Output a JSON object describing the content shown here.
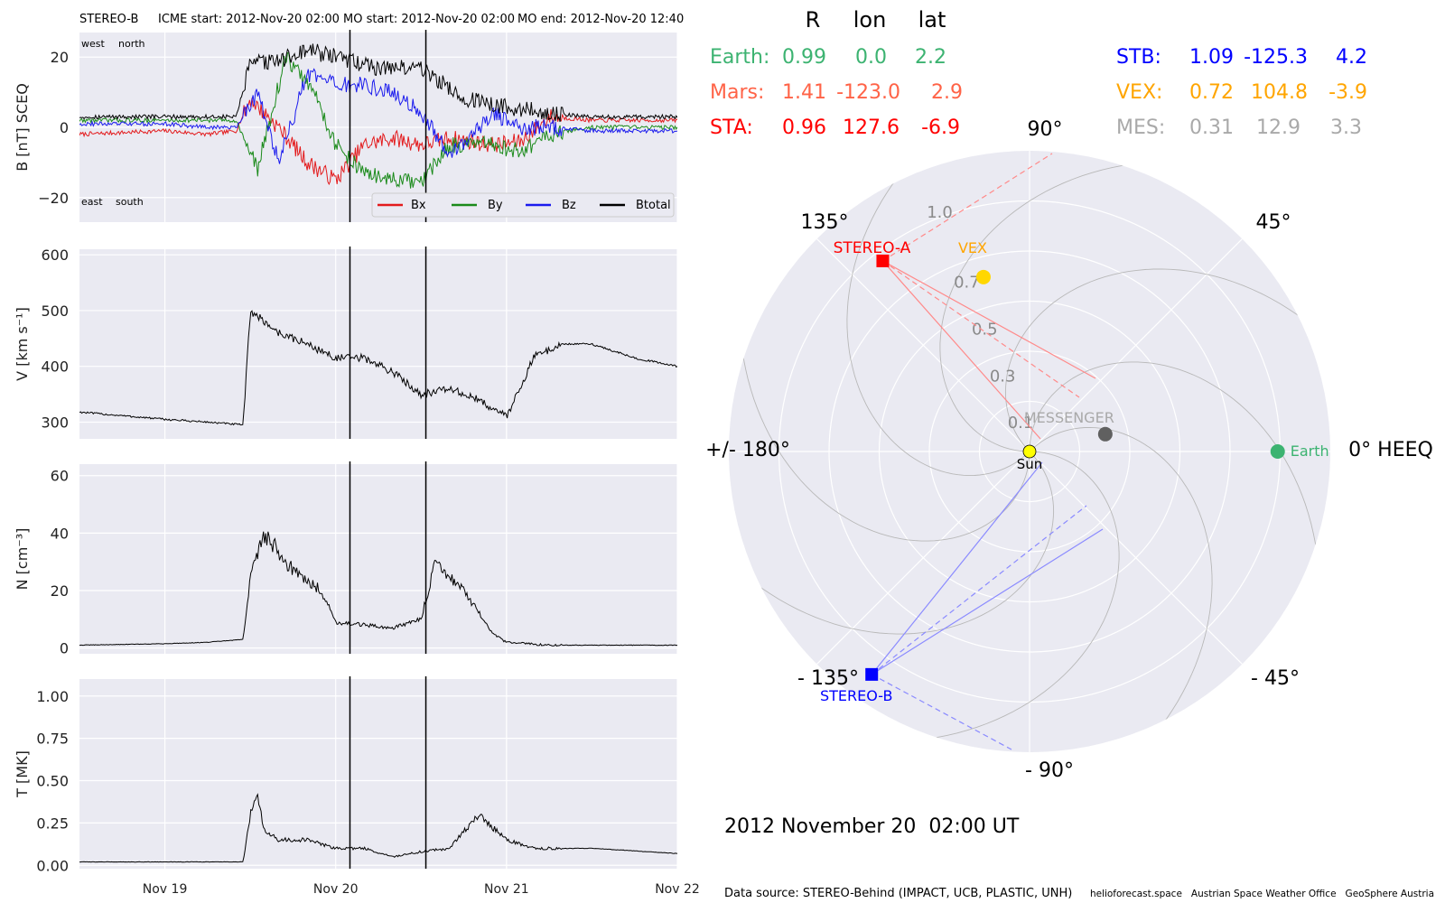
{
  "header": {
    "spacecraft": "STEREO-B",
    "icme": "ICME start: 2012-Nov-20 02:00",
    "mo_start": "MO start: 2012-Nov-20 02:00",
    "mo_end": "MO end: 2012-Nov-20 12:40"
  },
  "panel_labels": {
    "west": "west",
    "north": "north",
    "east": "east",
    "south": "south"
  },
  "colors": {
    "axes_bg": "#eaeaf2",
    "bx": "#e31a1c",
    "by": "#1a8a1a",
    "bz": "#1a1aee",
    "bt": "#000000",
    "earth": "#3cb371",
    "mars": "#ff6347",
    "sta": "#ff0000",
    "stb": "#0000ff",
    "vex": "#ffa500",
    "mes": "#a9a9a9",
    "vex_marker": "#ffd700",
    "sun": "#ffff00",
    "mes_marker": "#606060"
  },
  "chart_data": [
    {
      "type": "line",
      "ylabel": "B [nT] SCEQ",
      "xlim": [
        "2012-11-18 12:00",
        "2012-11-22 00:00"
      ],
      "ylim": [
        -27,
        27
      ],
      "yticks": [
        20,
        0,
        -20
      ],
      "ytick_labels": [
        "20",
        "0",
        "−20"
      ],
      "legend": {
        "placement": "lower-right",
        "entries": [
          "Bx",
          "By",
          "Bz",
          "Btotal"
        ]
      },
      "event_markers": [
        "2012-11-20 02:00",
        "2012-11-20 12:40"
      ],
      "series": [
        {
          "name": "Bx",
          "x": [
            "2012-11-18 12:00",
            "2012-11-19 00:00",
            "2012-11-19 06:00",
            "2012-11-19 10:00",
            "2012-11-19 12:00",
            "2012-11-19 16:00",
            "2012-11-19 20:00",
            "2012-11-20 00:00",
            "2012-11-20 04:00",
            "2012-11-20 08:00",
            "2012-11-20 12:00",
            "2012-11-20 16:00",
            "2012-11-20 22:00",
            "2012-11-21 02:00",
            "2012-11-21 06:00",
            "2012-11-21 12:00",
            "2012-11-21 18:00",
            "2012-11-22 00:00"
          ],
          "y": [
            -2,
            -1,
            -2,
            -1,
            8,
            0,
            -10,
            -15,
            -5,
            -3,
            -5,
            -3,
            -5,
            -4,
            3,
            2,
            2,
            2
          ]
        },
        {
          "name": "By",
          "x": [
            "2012-11-18 12:00",
            "2012-11-19 00:00",
            "2012-11-19 06:00",
            "2012-11-19 10:00",
            "2012-11-19 13:00",
            "2012-11-19 17:00",
            "2012-11-19 21:00",
            "2012-11-20 00:00",
            "2012-11-20 04:00",
            "2012-11-20 08:00",
            "2012-11-20 12:00",
            "2012-11-20 16:00",
            "2012-11-20 22:00",
            "2012-11-21 02:00",
            "2012-11-21 06:00",
            "2012-11-21 12:00",
            "2012-11-21 18:00",
            "2012-11-22 00:00"
          ],
          "y": [
            2,
            2,
            2,
            2,
            -12,
            20,
            10,
            -5,
            -13,
            -15,
            -16,
            -5,
            -5,
            -7,
            -2,
            0,
            0,
            0
          ]
        },
        {
          "name": "Bz",
          "x": [
            "2012-11-18 12:00",
            "2012-11-19 00:00",
            "2012-11-19 06:00",
            "2012-11-19 10:00",
            "2012-11-19 13:00",
            "2012-11-19 16:00",
            "2012-11-19 20:00",
            "2012-11-20 00:00",
            "2012-11-20 04:00",
            "2012-11-20 08:00",
            "2012-11-20 12:00",
            "2012-11-20 16:00",
            "2012-11-20 22:00",
            "2012-11-21 02:00",
            "2012-11-21 06:00",
            "2012-11-21 12:00",
            "2012-11-21 18:00",
            "2012-11-22 00:00"
          ],
          "y": [
            1,
            1,
            0,
            0,
            10,
            -10,
            15,
            12,
            12,
            10,
            4,
            -8,
            4,
            0,
            0,
            -1,
            -1,
            -1
          ]
        },
        {
          "name": "Btotal",
          "x": [
            "2012-11-18 12:00",
            "2012-11-19 00:00",
            "2012-11-19 06:00",
            "2012-11-19 10:00",
            "2012-11-19 12:00",
            "2012-11-19 16:00",
            "2012-11-19 20:00",
            "2012-11-20 00:00",
            "2012-11-20 06:00",
            "2012-11-20 12:00",
            "2012-11-20 18:00",
            "2012-11-21 00:00",
            "2012-11-21 06:00",
            "2012-11-21 12:00",
            "2012-11-21 18:00",
            "2012-11-22 00:00"
          ],
          "y": [
            3,
            3,
            3,
            3,
            18,
            19,
            22,
            20,
            17,
            17,
            8,
            6,
            4,
            3,
            3,
            3
          ]
        }
      ]
    },
    {
      "type": "line",
      "ylabel": "V [km s⁻¹]",
      "xlim": [
        "2012-11-18 12:00",
        "2012-11-22 00:00"
      ],
      "ylim": [
        270,
        610
      ],
      "yticks": [
        600,
        500,
        400,
        300
      ],
      "event_markers": [
        "2012-11-20 02:00",
        "2012-11-20 12:40"
      ],
      "series": [
        {
          "name": "V",
          "x": [
            "2012-11-18 12:00",
            "2012-11-19 00:00",
            "2012-11-19 06:00",
            "2012-11-19 11:00",
            "2012-11-19 12:00",
            "2012-11-19 16:00",
            "2012-11-19 20:00",
            "2012-11-20 00:00",
            "2012-11-20 04:00",
            "2012-11-20 08:00",
            "2012-11-20 12:00",
            "2012-11-20 16:00",
            "2012-11-20 20:00",
            "2012-11-21 00:00",
            "2012-11-21 04:00",
            "2012-11-21 08:00",
            "2012-11-21 12:00",
            "2012-11-21 18:00",
            "2012-11-22 00:00"
          ],
          "y": [
            318,
            305,
            300,
            295,
            500,
            460,
            440,
            415,
            415,
            390,
            350,
            360,
            340,
            310,
            420,
            440,
            440,
            415,
            400
          ]
        }
      ]
    },
    {
      "type": "line",
      "ylabel": "N [cm⁻³]",
      "xlim": [
        "2012-11-18 12:00",
        "2012-11-22 00:00"
      ],
      "ylim": [
        -2,
        64
      ],
      "yticks": [
        60,
        40,
        20,
        0
      ],
      "event_markers": [
        "2012-11-20 02:00",
        "2012-11-20 12:40"
      ],
      "series": [
        {
          "name": "N",
          "x": [
            "2012-11-18 12:00",
            "2012-11-19 00:00",
            "2012-11-19 06:00",
            "2012-11-19 11:00",
            "2012-11-19 12:00",
            "2012-11-19 14:00",
            "2012-11-19 17:00",
            "2012-11-19 19:00",
            "2012-11-19 22:00",
            "2012-11-20 00:00",
            "2012-11-20 04:00",
            "2012-11-20 08:00",
            "2012-11-20 12:00",
            "2012-11-20 14:00",
            "2012-11-20 18:00",
            "2012-11-20 22:00",
            "2012-11-21 00:00",
            "2012-11-21 06:00",
            "2012-11-22 00:00"
          ],
          "y": [
            1,
            1.5,
            2,
            3,
            25,
            40,
            30,
            25,
            20,
            9,
            8,
            7,
            10,
            30,
            20,
            5,
            2,
            1,
            1
          ]
        }
      ]
    },
    {
      "type": "line",
      "ylabel": "T [MK]",
      "xlim": [
        "2012-11-18 12:00",
        "2012-11-22 00:00"
      ],
      "ylim": [
        -0.02,
        1.1
      ],
      "yticks": [
        1.0,
        0.75,
        0.5,
        0.25,
        0.0
      ],
      "ytick_labels": [
        "1.00",
        "0.75",
        "0.50",
        "0.25",
        "0.00"
      ],
      "xticks": [
        "Nov 19",
        "Nov 20",
        "Nov 21",
        "Nov 22"
      ],
      "event_markers": [
        "2012-11-20 02:00",
        "2012-11-20 12:40"
      ],
      "series": [
        {
          "name": "T",
          "x": [
            "2012-11-18 12:00",
            "2012-11-19 00:00",
            "2012-11-19 11:00",
            "2012-11-19 12:00",
            "2012-11-19 13:00",
            "2012-11-19 14:00",
            "2012-11-19 16:00",
            "2012-11-19 20:00",
            "2012-11-20 00:00",
            "2012-11-20 04:00",
            "2012-11-20 08:00",
            "2012-11-20 12:00",
            "2012-11-20 16:00",
            "2012-11-20 20:00",
            "2012-11-21 00:00",
            "2012-11-21 04:00",
            "2012-11-21 12:00",
            "2012-11-22 00:00"
          ],
          "y": [
            0.02,
            0.02,
            0.02,
            0.3,
            0.4,
            0.2,
            0.15,
            0.15,
            0.1,
            0.1,
            0.05,
            0.08,
            0.1,
            0.3,
            0.15,
            0.1,
            0.1,
            0.07
          ]
        }
      ]
    },
    {
      "type": "scatter",
      "subtype": "polar",
      "angle_unit": "deg",
      "r_ticks": [
        0.1,
        0.3,
        0.5,
        0.7,
        1.0
      ],
      "r_tick_labels": [
        "0.1",
        "0.3",
        "0.5",
        "0.7",
        "1.0"
      ],
      "rlim": [
        0,
        1.2
      ],
      "angle_labels": {
        "0": "0° HEEQ",
        "45": "45°",
        "90": "90°",
        "135": "135°",
        "180": "+/- 180°",
        "-135": "- 135°",
        "-90": "- 90°",
        "-45": "- 45°"
      },
      "points": [
        {
          "label": "Sun",
          "r": 0.0,
          "lon": 0.0
        },
        {
          "label": "Earth",
          "r": 0.99,
          "lon": 0.0
        },
        {
          "label": "MESSENGER",
          "r": 0.31,
          "lon": 12.9
        },
        {
          "label": "VEX",
          "r": 0.72,
          "lon": 104.8
        },
        {
          "label": "STEREO-A",
          "r": 0.96,
          "lon": 127.6
        },
        {
          "label": "STEREO-B",
          "r": 1.09,
          "lon": -125.3
        }
      ]
    }
  ],
  "table": {
    "columns": [
      "R",
      "lon",
      "lat"
    ],
    "left_rows": [
      {
        "name": "Earth:",
        "r": "0.99",
        "lon": "0.0",
        "lat": "2.2"
      },
      {
        "name": "Mars:",
        "r": "1.41",
        "lon": "-123.0",
        "lat": "2.9"
      },
      {
        "name": "STA:",
        "r": "0.96",
        "lon": "127.6",
        "lat": "-6.9"
      }
    ],
    "right_rows": [
      {
        "name": "STB:",
        "r": "1.09",
        "lon": "-125.3",
        "lat": "4.2"
      },
      {
        "name": "VEX:",
        "r": "0.72",
        "lon": "104.8",
        "lat": "-3.9"
      },
      {
        "name": "MES:",
        "r": "0.31",
        "lon": "12.9",
        "lat": "3.3"
      }
    ]
  },
  "timestamp": "2012 November 20  02:00 UT",
  "footer": {
    "source": "Data source: STEREO-Behind (IMPACT, UCB, PLASTIC, UNH)",
    "credits": "helioforecast.space   Austrian Space Weather Office   GeoSphere Austria"
  }
}
